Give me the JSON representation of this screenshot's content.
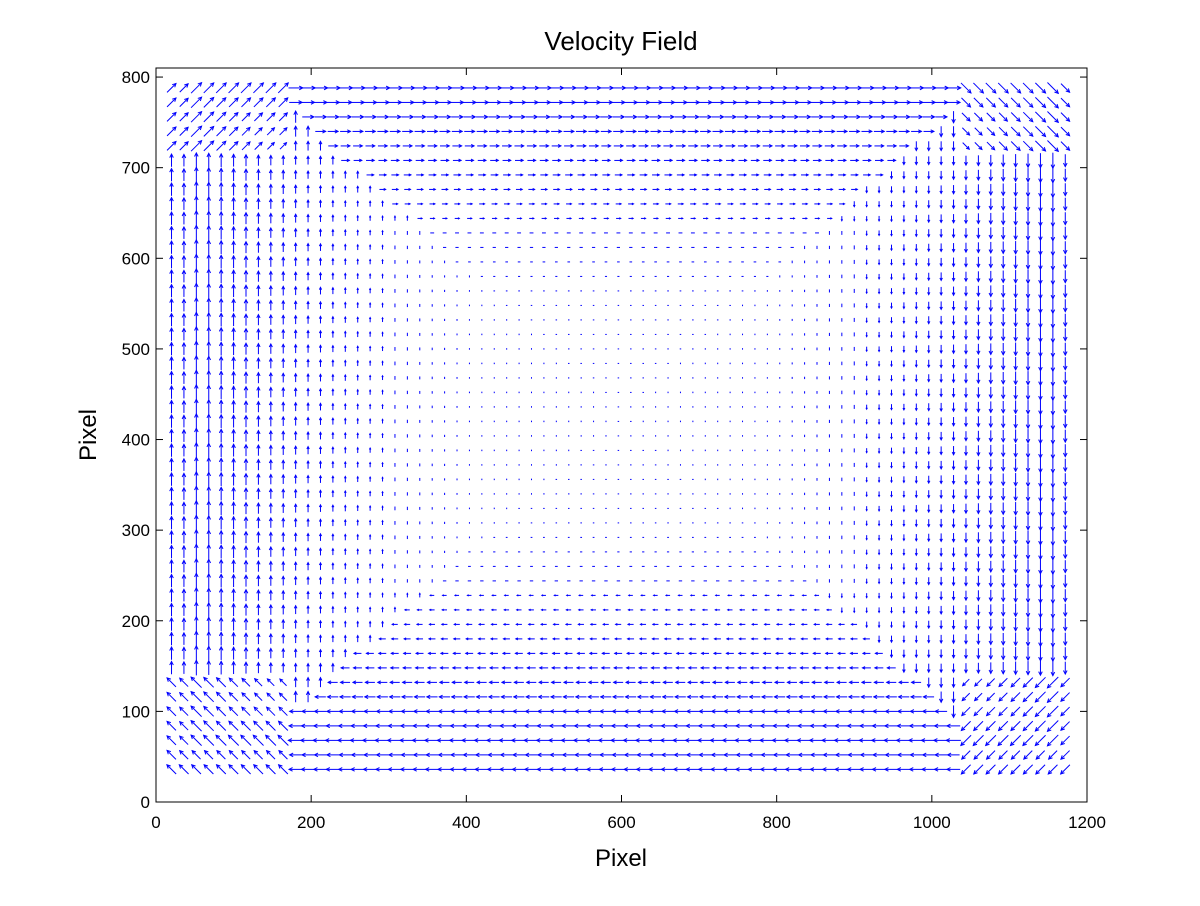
{
  "chart_data": {
    "type": "quiver",
    "title": "Velocity Field",
    "xlabel": "Pixel",
    "ylabel": "Pixel",
    "xlim": [
      0,
      1200
    ],
    "ylim": [
      0,
      810
    ],
    "xticks": [
      0,
      200,
      400,
      600,
      800,
      1000,
      1200
    ],
    "yticks": [
      0,
      100,
      200,
      300,
      400,
      500,
      600,
      700,
      800
    ],
    "grid": false,
    "legend": "none",
    "series": [
      {
        "color": "#0000ff",
        "field": {
          "description_of_flow": "clockwise vortex",
          "x_range": [
            20,
            1180
          ],
          "y_range": [
            20,
            795
          ],
          "grid_spacing_x": 16,
          "grid_spacing_y": 16,
          "center": [
            600,
            430
          ],
          "max_speed_at_walls": 1.0
        }
      }
    ]
  }
}
